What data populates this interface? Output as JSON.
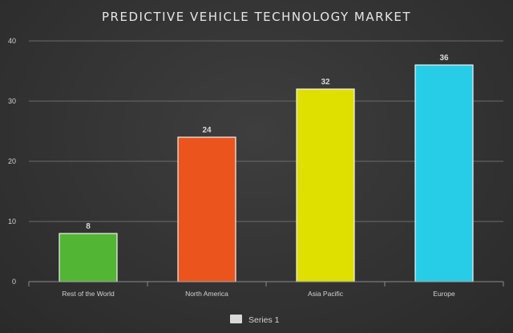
{
  "chart_data": {
    "type": "bar",
    "title": "PREDICTIVE VEHICLE TECHNOLOGY MARKET",
    "categories": [
      "Rest of the World",
      "North America",
      "Asia Pacific",
      "Europe"
    ],
    "series": [
      {
        "name": "Series 1",
        "values": [
          8,
          24,
          32,
          36
        ]
      }
    ],
    "bar_colors": [
      "#52b534",
      "#ec541d",
      "#dfe000",
      "#27cde6"
    ],
    "ylim": [
      0,
      40
    ],
    "yticks": [
      0,
      10,
      20,
      30,
      40
    ],
    "grid": true,
    "legend": {
      "position": "bottom",
      "swatch_color": "#d9d9d9"
    },
    "background": "#363636"
  }
}
